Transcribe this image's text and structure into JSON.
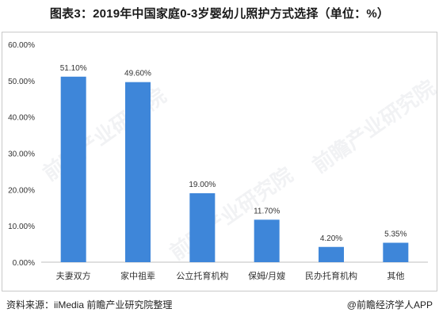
{
  "title": "图表3：2019年中国家庭0-3岁婴幼儿照护方式选择（单位：%）",
  "source_text": "资料来源：iiMedia  前瞻产业研究院整理",
  "brand_text": "@前瞻经济学人APP",
  "watermark_text": "前瞻产业研究院",
  "colors": {
    "bar": "#3e86d9",
    "axis": "#bfbfbf",
    "text": "#333333"
  },
  "chart_data": {
    "type": "bar",
    "categories": [
      "夫妻双方",
      "家中祖辈",
      "公立托育机构",
      "保姆/月嫂",
      "民办托育机构",
      "其他"
    ],
    "values": [
      51.1,
      49.6,
      19.0,
      11.7,
      4.2,
      5.35
    ],
    "value_labels": [
      "51.10%",
      "49.60%",
      "19.00%",
      "11.70%",
      "4.20%",
      "5.35%"
    ],
    "yticks": [
      "0.00%",
      "10.00%",
      "20.00%",
      "30.00%",
      "40.00%",
      "50.00%",
      "60.00%"
    ],
    "ylim": [
      0,
      60
    ],
    "grid": false
  }
}
